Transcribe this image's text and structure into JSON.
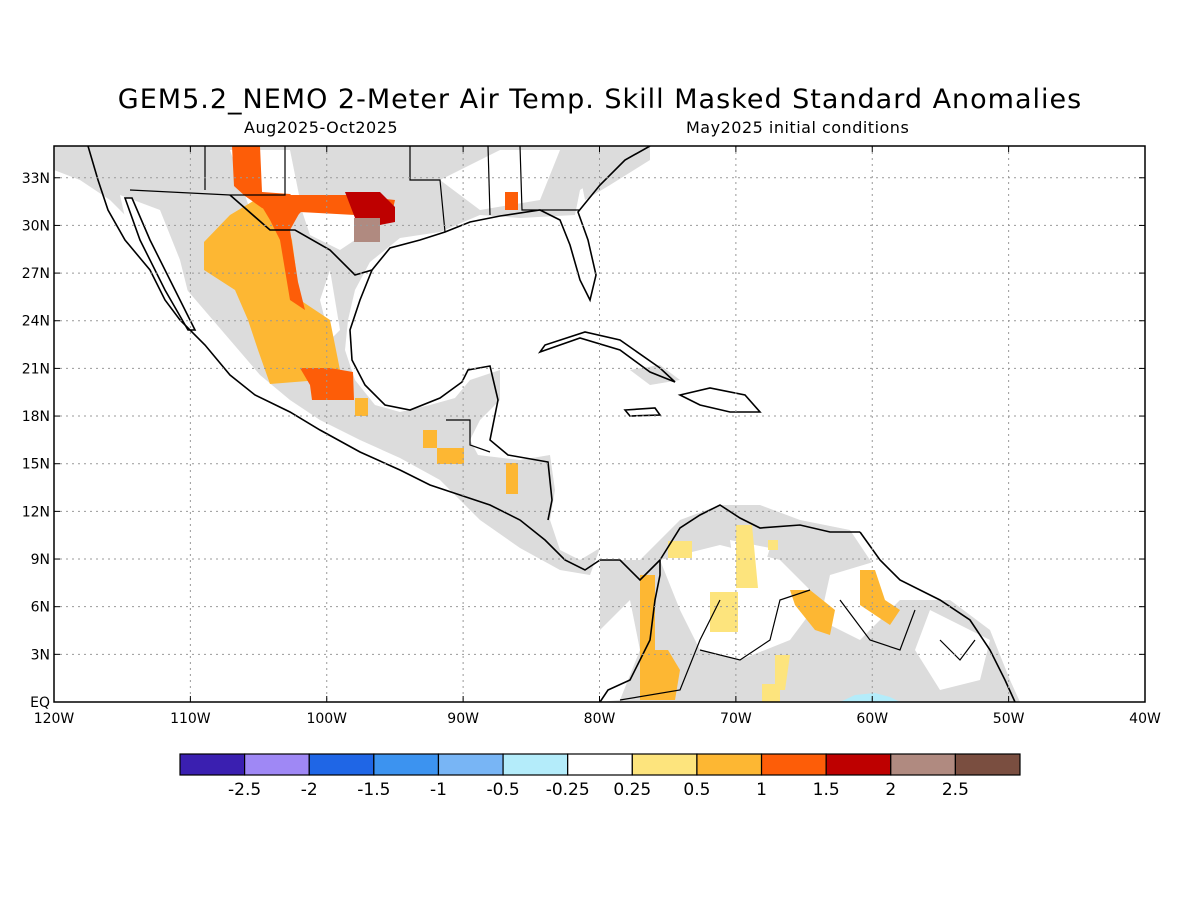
{
  "title": "GEM5.2_NEMO 2-Meter Air Temp. Skill Masked Standard Anomalies",
  "subtitle_left": "Aug2025-Oct2025",
  "subtitle_right": "May2025 initial conditions",
  "map": {
    "lon_range": [
      -120,
      -40
    ],
    "lat_range": [
      0,
      35
    ],
    "lon_ticks": [
      {
        "value": -120,
        "label": "120W"
      },
      {
        "value": -110,
        "label": "110W"
      },
      {
        "value": -100,
        "label": "100W"
      },
      {
        "value": -90,
        "label": "90W"
      },
      {
        "value": -80,
        "label": "80W"
      },
      {
        "value": -70,
        "label": "70W"
      },
      {
        "value": -60,
        "label": "60W"
      },
      {
        "value": -50,
        "label": "50W"
      },
      {
        "value": -40,
        "label": "40W"
      }
    ],
    "lat_ticks": [
      {
        "value": 0,
        "label": "EQ"
      },
      {
        "value": 3,
        "label": "3N"
      },
      {
        "value": 6,
        "label": "6N"
      },
      {
        "value": 9,
        "label": "9N"
      },
      {
        "value": 12,
        "label": "12N"
      },
      {
        "value": 15,
        "label": "15N"
      },
      {
        "value": 18,
        "label": "18N"
      },
      {
        "value": 21,
        "label": "21N"
      },
      {
        "value": 24,
        "label": "24N"
      },
      {
        "value": 27,
        "label": "27N"
      },
      {
        "value": 30,
        "label": "30N"
      },
      {
        "value": 33,
        "label": "33N"
      }
    ],
    "grid": true,
    "colors": {
      "land_masked": "#dcdcdc",
      "ocean": "#ffffff",
      "coast": "#000000"
    }
  },
  "colorbar": {
    "colors": [
      "#3a1fb0",
      "#9f88f5",
      "#1f66e6",
      "#3c93f0",
      "#78b5f5",
      "#b4ecfa",
      "#ffffff",
      "#fde47d",
      "#fdb733",
      "#fd5d08",
      "#be0000",
      "#b08a80",
      "#7a4e40"
    ],
    "labels": [
      "-2.5",
      "-2",
      "-1.5",
      "-1",
      "-0.5",
      "-0.25",
      "0.25",
      "0.5",
      "1",
      "1.5",
      "2",
      "2.5"
    ]
  }
}
